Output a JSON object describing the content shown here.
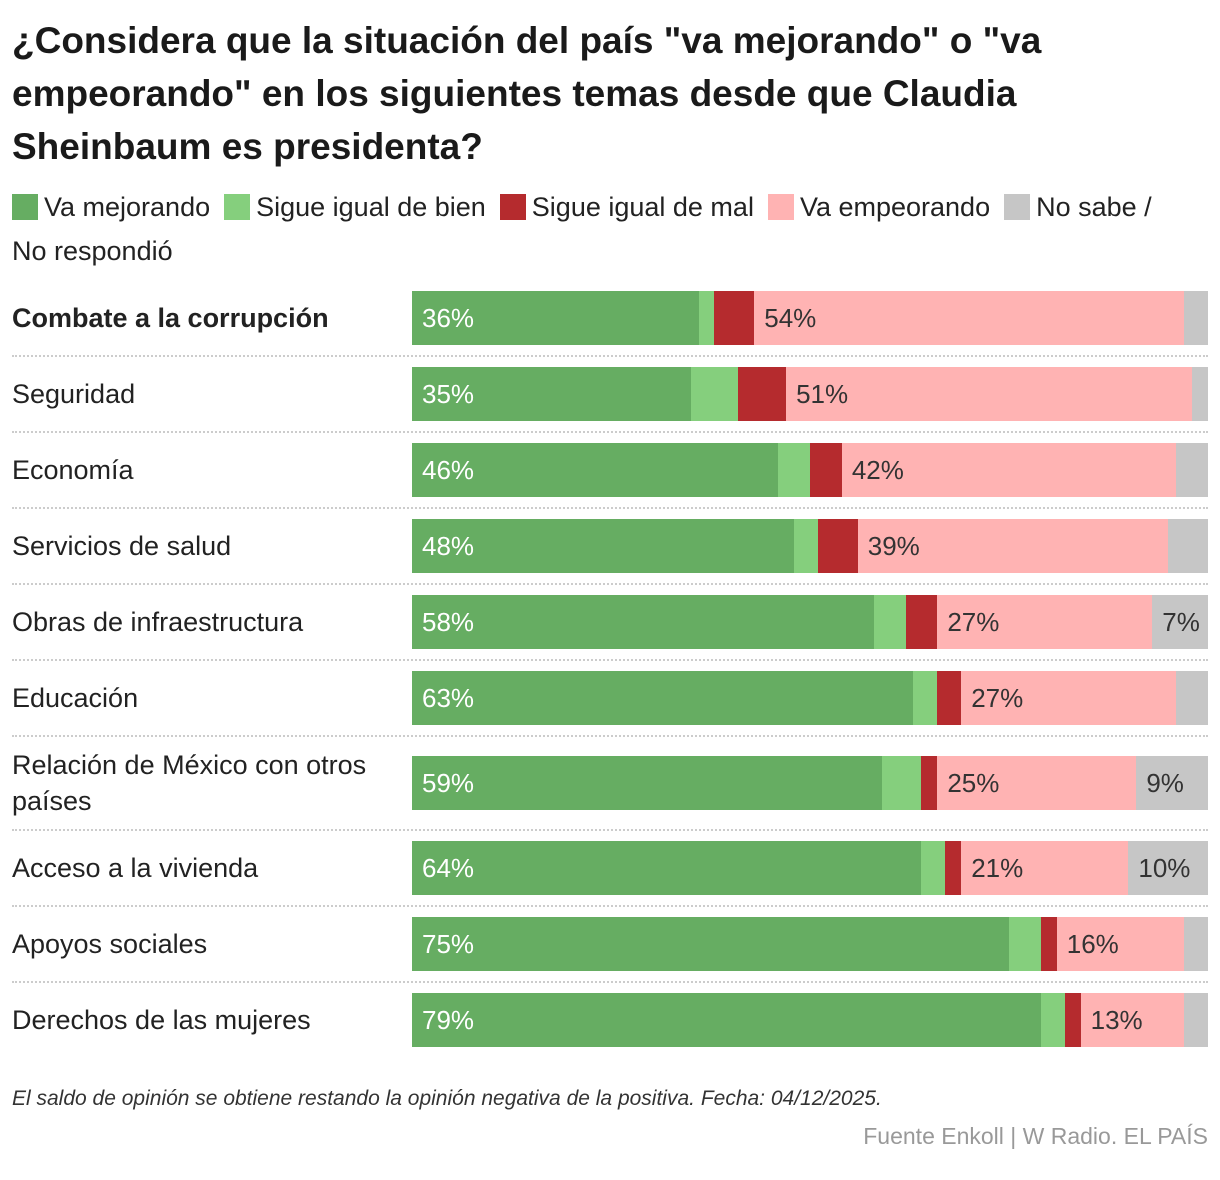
{
  "chart_data": {
    "type": "stacked-bar-horizontal",
    "title": "¿Considera que la situación del país \"va mejorando\" o \"va empeorando\" en los siguientes temas desde que Claudia Sheinbaum es presidenta?",
    "categories": [
      "Combate a la corrupción",
      "Seguridad",
      "Economía",
      "Servicios de salud",
      "Obras de infraestructura",
      "Educación",
      "Relación de México con otros países",
      "Acceso a la vivienda",
      "Apoyos sociales",
      "Derechos de las mujeres"
    ],
    "xlim": [
      0,
      100
    ],
    "series": [
      {
        "name": "Va mejorando",
        "color": "#66ad62",
        "values": [
          36,
          35,
          46,
          48,
          58,
          63,
          59,
          64,
          75,
          79
        ],
        "value_labels": [
          "36%",
          "35%",
          "46%",
          "48%",
          "58%",
          "63%",
          "59%",
          "64%",
          "75%",
          "79%"
        ]
      },
      {
        "name": "Sigue igual de bien",
        "color": "#85cf7d",
        "values": [
          2,
          6,
          4,
          3,
          4,
          3,
          5,
          3,
          4,
          3
        ]
      },
      {
        "name": "Sigue igual de mal",
        "color": "#b52b2e",
        "values": [
          5,
          6,
          4,
          5,
          4,
          3,
          2,
          2,
          2,
          2
        ]
      },
      {
        "name": "Va empeorando",
        "color": "#ffb3b3",
        "values": [
          54,
          51,
          42,
          39,
          27,
          27,
          25,
          21,
          16,
          13
        ],
        "value_labels": [
          "54%",
          "51%",
          "42%",
          "39%",
          "27%",
          "27%",
          "25%",
          "21%",
          "16%",
          "13%"
        ]
      },
      {
        "name": "No sabe / No respondió",
        "color": "#c6c6c6",
        "values": [
          3,
          2,
          4,
          5,
          7,
          4,
          9,
          10,
          3,
          3
        ],
        "value_labels": [
          null,
          null,
          null,
          null,
          "7%",
          null,
          "9%",
          "10%",
          null,
          null
        ]
      }
    ],
    "note": "El saldo de opinión se obtiene restando la opinión negativa de la positiva. Fecha: 04/12/2025.",
    "source": "Fuente Enkoll | W Radio. EL PAÍS"
  }
}
